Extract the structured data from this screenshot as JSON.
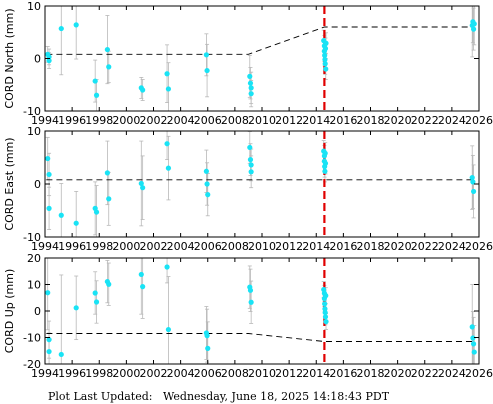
{
  "footer": {
    "label": "Plot Last Updated:",
    "value": "Wednesday, June 18, 2025 14:18:43 PDT"
  },
  "chart_data": [
    {
      "type": "scatter",
      "ylabel": "CORD North (mm)",
      "xlim": [
        1994,
        2026
      ],
      "ylim": [
        -10,
        10
      ],
      "yticks": [
        -10,
        0,
        10
      ],
      "xticks": [
        1994,
        1996,
        1998,
        2000,
        2002,
        2004,
        2006,
        2008,
        2010,
        2012,
        2014,
        2016,
        2018,
        2020,
        2022,
        2024,
        2026
      ],
      "grid": false,
      "event_line": 2014.6,
      "trend": [
        [
          1994.1,
          0.8
        ],
        [
          1998.0,
          0.8
        ],
        [
          2009.0,
          0.8
        ],
        [
          2014.6,
          6.0
        ],
        [
          2025.6,
          6.0
        ]
      ],
      "points": [
        {
          "x": 1994.2,
          "y": 0.8,
          "err": 1.5
        },
        {
          "x": 1994.3,
          "y": 0.3,
          "err": 1.5
        },
        {
          "x": 1994.3,
          "y": -0.4,
          "err": 1.5
        },
        {
          "x": 1995.2,
          "y": 5.7,
          "err": 8.8
        },
        {
          "x": 1996.3,
          "y": 6.4,
          "err": 6.5
        },
        {
          "x": 1997.7,
          "y": -4.3,
          "err": 4.0
        },
        {
          "x": 1997.8,
          "y": -7.0,
          "err": 3.0
        },
        {
          "x": 1998.6,
          "y": 1.7,
          "err": 6.5
        },
        {
          "x": 1998.7,
          "y": -1.6,
          "err": 3.0
        },
        {
          "x": 2001.1,
          "y": -5.6,
          "err": 2.0
        },
        {
          "x": 2001.2,
          "y": -6.0,
          "err": 2.0
        },
        {
          "x": 2003.0,
          "y": -2.9,
          "err": 5.5
        },
        {
          "x": 2003.1,
          "y": -5.8,
          "err": 5.0
        },
        {
          "x": 2005.9,
          "y": 0.7,
          "err": 4.0
        },
        {
          "x": 2005.95,
          "y": -2.3,
          "err": 5.0
        },
        {
          "x": 2009.1,
          "y": -3.4,
          "err": 4.0
        },
        {
          "x": 2009.15,
          "y": -4.7,
          "err": 3.0
        },
        {
          "x": 2009.2,
          "y": -5.6,
          "err": 3.0
        },
        {
          "x": 2009.2,
          "y": -6.7,
          "err": 2.5
        },
        {
          "x": 2014.55,
          "y": 3.4,
          "err": 2.0
        },
        {
          "x": 2014.6,
          "y": 2.4,
          "err": 2.0
        },
        {
          "x": 2014.6,
          "y": 1.4,
          "err": 2.0
        },
        {
          "x": 2014.62,
          "y": 0.6,
          "err": 2.0
        },
        {
          "x": 2014.64,
          "y": -0.2,
          "err": 2.0
        },
        {
          "x": 2014.66,
          "y": -1.0,
          "err": 2.0
        },
        {
          "x": 2014.68,
          "y": 1.9,
          "err": 2.0
        },
        {
          "x": 2014.7,
          "y": -2.0,
          "err": 2.0
        },
        {
          "x": 2014.72,
          "y": 2.9,
          "err": 2.0
        },
        {
          "x": 2025.5,
          "y": 6.3,
          "err": 6.0
        },
        {
          "x": 2025.55,
          "y": 7.0,
          "err": 4.0
        },
        {
          "x": 2025.6,
          "y": 5.6,
          "err": 4.0
        },
        {
          "x": 2025.65,
          "y": 6.6,
          "err": 4.0
        }
      ]
    },
    {
      "type": "scatter",
      "ylabel": "CORD East (mm)",
      "xlim": [
        1994,
        2026
      ],
      "ylim": [
        -10,
        10
      ],
      "yticks": [
        -10,
        0,
        10
      ],
      "xticks": [
        1994,
        1996,
        1998,
        2000,
        2002,
        2004,
        2006,
        2008,
        2010,
        2012,
        2014,
        2016,
        2018,
        2020,
        2022,
        2024,
        2026
      ],
      "grid": false,
      "event_line": 2014.6,
      "trend": [
        [
          1994.1,
          0.8
        ],
        [
          2025.6,
          0.8
        ]
      ],
      "points": [
        {
          "x": 1994.2,
          "y": 4.8,
          "err": 4.0
        },
        {
          "x": 1994.3,
          "y": 1.8,
          "err": 4.0
        },
        {
          "x": 1994.3,
          "y": -4.6,
          "err": 4.0
        },
        {
          "x": 1995.2,
          "y": -5.9,
          "err": 6.0
        },
        {
          "x": 1996.3,
          "y": -7.4,
          "err": 6.0
        },
        {
          "x": 1997.7,
          "y": -4.6,
          "err": 5.0
        },
        {
          "x": 1997.8,
          "y": -5.3,
          "err": 5.0
        },
        {
          "x": 1998.6,
          "y": 2.1,
          "err": 6.0
        },
        {
          "x": 1998.7,
          "y": -2.8,
          "err": 5.0
        },
        {
          "x": 2001.1,
          "y": 0.1,
          "err": 8.0
        },
        {
          "x": 2001.2,
          "y": -0.7,
          "err": 6.0
        },
        {
          "x": 2003.0,
          "y": 7.6,
          "err": 3.0
        },
        {
          "x": 2003.1,
          "y": 3.0,
          "err": 6.0
        },
        {
          "x": 2005.9,
          "y": 2.4,
          "err": 4.0
        },
        {
          "x": 2005.95,
          "y": 0.0,
          "err": 4.0
        },
        {
          "x": 2006.0,
          "y": -2.0,
          "err": 4.0
        },
        {
          "x": 2009.1,
          "y": 6.9,
          "err": 3.0
        },
        {
          "x": 2009.15,
          "y": 4.6,
          "err": 3.0
        },
        {
          "x": 2009.2,
          "y": 3.6,
          "err": 3.0
        },
        {
          "x": 2009.2,
          "y": 2.3,
          "err": 3.0
        },
        {
          "x": 2014.55,
          "y": 6.2,
          "err": 2.0
        },
        {
          "x": 2014.6,
          "y": 5.3,
          "err": 2.0
        },
        {
          "x": 2014.6,
          "y": 4.3,
          "err": 2.0
        },
        {
          "x": 2014.62,
          "y": 3.3,
          "err": 2.0
        },
        {
          "x": 2014.64,
          "y": 2.4,
          "err": 2.0
        },
        {
          "x": 2014.66,
          "y": 5.8,
          "err": 2.0
        },
        {
          "x": 2014.68,
          "y": 3.9,
          "err": 2.0
        },
        {
          "x": 2025.5,
          "y": 1.2,
          "err": 6.0
        },
        {
          "x": 2025.55,
          "y": 0.4,
          "err": 5.0
        },
        {
          "x": 2025.6,
          "y": -1.4,
          "err": 5.0
        }
      ]
    },
    {
      "type": "scatter",
      "ylabel": "CORD Up (mm)",
      "xlim": [
        1994,
        2026
      ],
      "ylim": [
        -20,
        20
      ],
      "yticks": [
        -20,
        -10,
        0,
        10,
        20
      ],
      "xticks": [
        1994,
        1996,
        1998,
        2000,
        2002,
        2004,
        2006,
        2008,
        2010,
        2012,
        2014,
        2016,
        2018,
        2020,
        2022,
        2024,
        2026
      ],
      "grid": false,
      "event_line": 2014.6,
      "trend": [
        [
          1994.1,
          -8.5
        ],
        [
          2009.0,
          -8.5
        ],
        [
          2014.6,
          -11.5
        ],
        [
          2025.6,
          -11.5
        ]
      ],
      "points": [
        {
          "x": 1994.2,
          "y": 6.9,
          "err": 14.0
        },
        {
          "x": 1994.3,
          "y": -10.8,
          "err": 7.0
        },
        {
          "x": 1994.3,
          "y": -15.3,
          "err": 7.0
        },
        {
          "x": 1995.2,
          "y": -16.4,
          "err": 30.0
        },
        {
          "x": 1996.3,
          "y": 1.2,
          "err": 12.0
        },
        {
          "x": 1997.7,
          "y": 6.8,
          "err": 8.0
        },
        {
          "x": 1997.8,
          "y": 3.4,
          "err": 8.0
        },
        {
          "x": 1998.6,
          "y": 11.1,
          "err": 8.0
        },
        {
          "x": 1998.7,
          "y": 10.1,
          "err": 8.0
        },
        {
          "x": 2001.1,
          "y": 13.8,
          "err": 15.0
        },
        {
          "x": 2001.2,
          "y": 9.2,
          "err": 12.0
        },
        {
          "x": 2003.0,
          "y": 16.6,
          "err": 6.0
        },
        {
          "x": 2003.1,
          "y": -7.0,
          "err": 20.0
        },
        {
          "x": 2005.9,
          "y": -8.3,
          "err": 10.0
        },
        {
          "x": 2005.95,
          "y": -9.3,
          "err": 10.0
        },
        {
          "x": 2006.0,
          "y": -14.1,
          "err": 10.0
        },
        {
          "x": 2009.1,
          "y": 9.0,
          "err": 8.0
        },
        {
          "x": 2009.15,
          "y": 7.8,
          "err": 8.0
        },
        {
          "x": 2009.2,
          "y": 3.3,
          "err": 8.0
        },
        {
          "x": 2014.55,
          "y": 8.1,
          "err": 3.0
        },
        {
          "x": 2014.6,
          "y": 6.7,
          "err": 3.0
        },
        {
          "x": 2014.6,
          "y": 4.7,
          "err": 3.0
        },
        {
          "x": 2014.62,
          "y": 2.7,
          "err": 3.0
        },
        {
          "x": 2014.64,
          "y": 0.8,
          "err": 3.0
        },
        {
          "x": 2014.66,
          "y": -0.6,
          "err": 3.0
        },
        {
          "x": 2014.68,
          "y": -2.2,
          "err": 3.0
        },
        {
          "x": 2014.7,
          "y": 5.8,
          "err": 3.0
        },
        {
          "x": 2014.72,
          "y": -4.0,
          "err": 3.0
        },
        {
          "x": 2025.5,
          "y": -6.0,
          "err": 16.0
        },
        {
          "x": 2025.55,
          "y": -10.2,
          "err": 10.0
        },
        {
          "x": 2025.6,
          "y": -12.4,
          "err": 10.0
        },
        {
          "x": 2025.65,
          "y": -15.5,
          "err": 10.0
        }
      ]
    }
  ]
}
